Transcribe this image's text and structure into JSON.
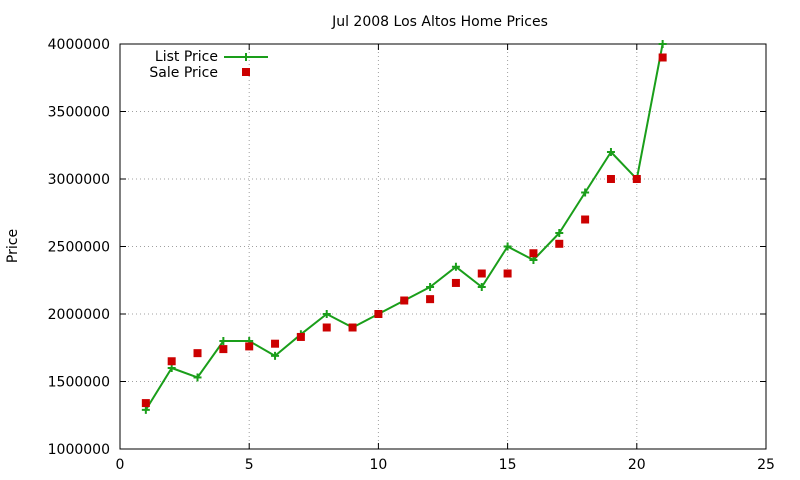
{
  "chart_data": {
    "type": "line",
    "title": "Jul 2008 Los Altos Home Prices",
    "xlabel": "",
    "ylabel": "Price",
    "xlim": [
      0,
      25
    ],
    "ylim": [
      1000000,
      4000000
    ],
    "x_ticks": [
      0,
      5,
      10,
      15,
      20,
      25
    ],
    "x_tick_labels": [
      "0",
      "5",
      "10",
      "15",
      "20",
      "25"
    ],
    "y_ticks": [
      1000000,
      1500000,
      2000000,
      2500000,
      3000000,
      3500000,
      4000000
    ],
    "y_tick_labels": [
      "1000000",
      "1500000",
      "2000000",
      "2500000",
      "3000000",
      "3500000",
      "4000000"
    ],
    "grid": true,
    "legend_position": "top-left",
    "x": [
      1,
      2,
      3,
      4,
      5,
      6,
      7,
      8,
      9,
      10,
      11,
      12,
      13,
      14,
      15,
      16,
      17,
      18,
      19,
      20,
      21
    ],
    "series": [
      {
        "name": "List Price",
        "style": "line-with-plus-markers",
        "color": "#1a9e1a",
        "values": [
          1290000,
          1600000,
          1530000,
          1800000,
          1800000,
          1690000,
          1850000,
          2000000,
          1900000,
          2000000,
          2100000,
          2200000,
          2350000,
          2200000,
          2500000,
          2400000,
          2600000,
          2900000,
          3200000,
          3000000,
          4000000
        ]
      },
      {
        "name": "Sale Price",
        "style": "square-markers",
        "color": "#cc0000",
        "values": [
          1340000,
          1650000,
          1710000,
          1740000,
          1760000,
          1780000,
          1830000,
          1900000,
          1900000,
          2000000,
          2100000,
          2110000,
          2230000,
          2300000,
          2300000,
          2450000,
          2520000,
          2700000,
          3000000,
          3000000,
          3900000
        ]
      }
    ]
  }
}
